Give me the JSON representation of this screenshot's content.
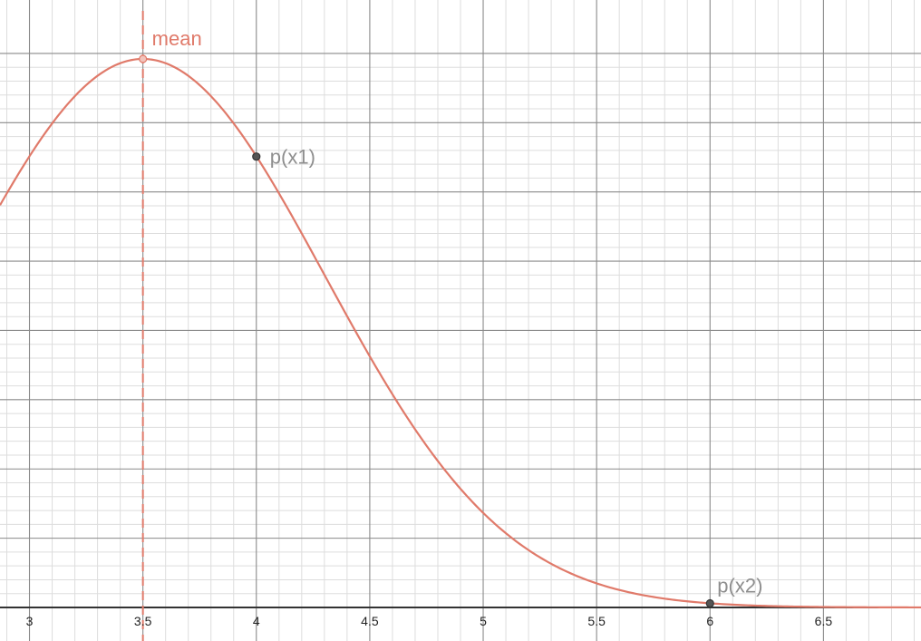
{
  "chart_data": {
    "type": "line",
    "title": "",
    "xlabel": "",
    "ylabel": "",
    "xlim": [
      2.87,
      6.93
    ],
    "ylim": [
      0,
      1.01
    ],
    "grid": true,
    "x_ticks": [
      "3",
      "3.5",
      "4",
      "4.5",
      "5",
      "5.5",
      "6",
      "6.5"
    ],
    "x_tick_values": [
      3,
      3.5,
      4,
      4.5,
      5,
      5.5,
      6,
      6.5
    ],
    "y_tick_labels_shown": false,
    "curve": {
      "shape": "normal density",
      "mean": 3.5,
      "sd": 0.8,
      "peak": 1.0,
      "x_range": [
        2.87,
        6.93
      ]
    },
    "points": [
      {
        "name": "mean-point",
        "label": "",
        "x": 3.5,
        "y": 1.0
      },
      {
        "name": "p-x1-point",
        "label": "p(x1)",
        "x": 4.0,
        "y": 0.822
      },
      {
        "name": "p-x2-point",
        "label": "p(x2)",
        "x": 6.0,
        "y": 0.0075
      }
    ],
    "mean_line": {
      "x": 3.5,
      "label": "mean"
    },
    "colors": {
      "curve": "#e07a6a",
      "points": "#555555",
      "major_grid": "#8a8a8a",
      "minor_grid": "#dddddd",
      "axis": "#333333"
    }
  }
}
